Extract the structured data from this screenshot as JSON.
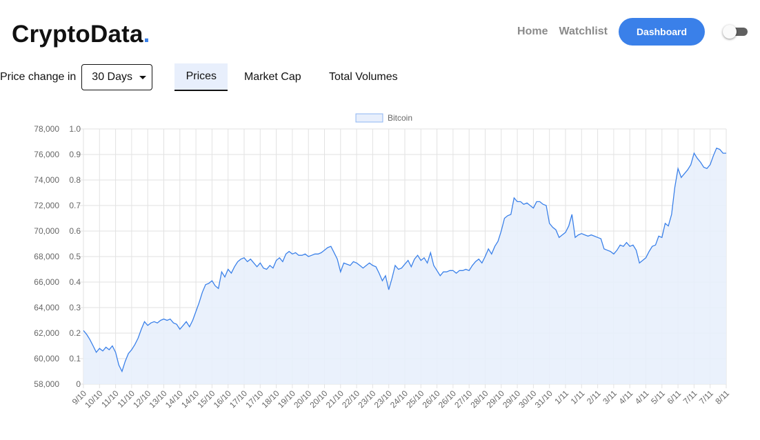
{
  "header": {
    "logo_text": "CryptoData",
    "logo_dot": ".",
    "nav": {
      "home": "Home",
      "watchlist": "Watchlist",
      "dashboard": "Dashboard"
    }
  },
  "controls": {
    "price_change_label": "Price change in",
    "days_selected": "30 Days",
    "tabs": [
      {
        "label": "Prices",
        "active": true
      },
      {
        "label": "Market Cap",
        "active": false
      },
      {
        "label": "Total Volumes",
        "active": false
      }
    ]
  },
  "colors": {
    "accent": "#3a80e9",
    "line": "#3a80e9",
    "fill": "#e8effc",
    "grid": "#e2e2e2"
  },
  "chart_data": {
    "type": "area",
    "legend": [
      "Bitcoin"
    ],
    "legend_position": "top-center",
    "y_left": {
      "ticks": [
        "78,000",
        "76,000",
        "74,000",
        "72,000",
        "70,000",
        "68,000",
        "66,000",
        "64,000",
        "62,000",
        "60,000",
        "58,000"
      ],
      "range": [
        58000,
        78000
      ]
    },
    "y_right": {
      "ticks": [
        "1.0",
        "0.9",
        "0.8",
        "0.7",
        "0.6",
        "0.5",
        "0.4",
        "0.3",
        "0.2",
        "0.1",
        "0"
      ],
      "range": [
        0,
        1
      ]
    },
    "x_labels": [
      "9/10",
      "10/10",
      "11/10",
      "11/10",
      "12/10",
      "13/10",
      "14/10",
      "14/10",
      "15/10",
      "16/10",
      "17/10",
      "17/10",
      "18/10",
      "19/10",
      "20/10",
      "20/10",
      "21/10",
      "22/10",
      "23/10",
      "23/10",
      "24/10",
      "25/10",
      "26/10",
      "26/10",
      "27/10",
      "28/10",
      "29/10",
      "29/10",
      "30/10",
      "31/10",
      "1/11",
      "1/11",
      "2/11",
      "3/11",
      "4/11",
      "4/11",
      "5/11",
      "6/11",
      "7/11",
      "7/11",
      "8/11"
    ],
    "series": [
      {
        "name": "Bitcoin",
        "points": [
          [
            0,
            62200
          ],
          [
            0.2,
            61900
          ],
          [
            0.4,
            61500
          ],
          [
            0.6,
            61000
          ],
          [
            0.8,
            60500
          ],
          [
            1.0,
            60800
          ],
          [
            1.2,
            60600
          ],
          [
            1.4,
            60900
          ],
          [
            1.6,
            60700
          ],
          [
            1.8,
            61000
          ],
          [
            2.0,
            60500
          ],
          [
            2.2,
            59500
          ],
          [
            2.4,
            59000
          ],
          [
            2.6,
            59800
          ],
          [
            2.8,
            60400
          ],
          [
            3.0,
            60700
          ],
          [
            3.2,
            61100
          ],
          [
            3.4,
            61600
          ],
          [
            3.6,
            62300
          ],
          [
            3.8,
            62900
          ],
          [
            4.0,
            62600
          ],
          [
            4.2,
            62800
          ],
          [
            4.4,
            62900
          ],
          [
            4.6,
            62800
          ],
          [
            4.8,
            63000
          ],
          [
            5.0,
            63100
          ],
          [
            5.2,
            63000
          ],
          [
            5.4,
            63100
          ],
          [
            5.6,
            62800
          ],
          [
            5.8,
            62700
          ],
          [
            6.0,
            62300
          ],
          [
            6.2,
            62600
          ],
          [
            6.4,
            62900
          ],
          [
            6.6,
            62500
          ],
          [
            6.8,
            63000
          ],
          [
            7.0,
            63700
          ],
          [
            7.2,
            64400
          ],
          [
            7.4,
            65200
          ],
          [
            7.6,
            65800
          ],
          [
            7.8,
            65900
          ],
          [
            8.0,
            66100
          ],
          [
            8.2,
            65700
          ],
          [
            8.4,
            65500
          ],
          [
            8.6,
            66800
          ],
          [
            8.8,
            66400
          ],
          [
            9.0,
            67000
          ],
          [
            9.2,
            66700
          ],
          [
            9.4,
            67200
          ],
          [
            9.6,
            67600
          ],
          [
            9.8,
            67800
          ],
          [
            10.0,
            67900
          ],
          [
            10.2,
            67600
          ],
          [
            10.4,
            67800
          ],
          [
            10.6,
            67500
          ],
          [
            10.8,
            67200
          ],
          [
            11.0,
            67500
          ],
          [
            11.2,
            67100
          ],
          [
            11.4,
            67000
          ],
          [
            11.6,
            67300
          ],
          [
            11.8,
            67100
          ],
          [
            12.0,
            67700
          ],
          [
            12.2,
            67900
          ],
          [
            12.4,
            67600
          ],
          [
            12.6,
            68200
          ],
          [
            12.8,
            68400
          ],
          [
            13.0,
            68200
          ],
          [
            13.2,
            68300
          ],
          [
            13.4,
            68100
          ],
          [
            13.6,
            68100
          ],
          [
            13.8,
            68200
          ],
          [
            14.0,
            68000
          ],
          [
            14.2,
            68100
          ],
          [
            14.4,
            68200
          ],
          [
            14.6,
            68200
          ],
          [
            14.8,
            68300
          ],
          [
            15.0,
            68500
          ],
          [
            15.2,
            68700
          ],
          [
            15.4,
            68800
          ],
          [
            15.6,
            68300
          ],
          [
            15.8,
            67800
          ],
          [
            16.0,
            66800
          ],
          [
            16.2,
            67500
          ],
          [
            16.4,
            67400
          ],
          [
            16.6,
            67300
          ],
          [
            16.8,
            67600
          ],
          [
            17.0,
            67500
          ],
          [
            17.2,
            67300
          ],
          [
            17.4,
            67100
          ],
          [
            17.6,
            67300
          ],
          [
            17.8,
            67500
          ],
          [
            18.0,
            67300
          ],
          [
            18.2,
            67200
          ],
          [
            18.4,
            66700
          ],
          [
            18.6,
            66100
          ],
          [
            18.8,
            66500
          ],
          [
            19.0,
            65400
          ],
          [
            19.2,
            66300
          ],
          [
            19.4,
            67300
          ],
          [
            19.6,
            67000
          ],
          [
            19.8,
            67100
          ],
          [
            20.0,
            67400
          ],
          [
            20.2,
            67700
          ],
          [
            20.4,
            67200
          ],
          [
            20.6,
            67800
          ],
          [
            20.8,
            68100
          ],
          [
            21.0,
            67700
          ],
          [
            21.2,
            67900
          ],
          [
            21.4,
            67500
          ],
          [
            21.6,
            68300
          ],
          [
            21.8,
            67300
          ],
          [
            22.0,
            66900
          ],
          [
            22.2,
            66500
          ],
          [
            22.4,
            66800
          ],
          [
            22.6,
            66800
          ],
          [
            22.8,
            66900
          ],
          [
            23.0,
            66900
          ],
          [
            23.2,
            66700
          ],
          [
            23.4,
            66900
          ],
          [
            23.6,
            66900
          ],
          [
            23.8,
            67000
          ],
          [
            24.0,
            66900
          ],
          [
            24.2,
            67300
          ],
          [
            24.4,
            67600
          ],
          [
            24.6,
            67800
          ],
          [
            24.8,
            67500
          ],
          [
            25.0,
            68000
          ],
          [
            25.2,
            68600
          ],
          [
            25.4,
            68200
          ],
          [
            25.6,
            68800
          ],
          [
            25.8,
            69200
          ],
          [
            26.0,
            70000
          ],
          [
            26.2,
            71000
          ],
          [
            26.4,
            71200
          ],
          [
            26.6,
            71300
          ],
          [
            26.8,
            72600
          ],
          [
            27.0,
            72300
          ],
          [
            27.2,
            72300
          ],
          [
            27.4,
            72100
          ],
          [
            27.6,
            72200
          ],
          [
            27.8,
            72000
          ],
          [
            28.0,
            71800
          ],
          [
            28.2,
            72300
          ],
          [
            28.4,
            72300
          ],
          [
            28.6,
            72100
          ],
          [
            28.8,
            72000
          ],
          [
            29.0,
            70600
          ],
          [
            29.2,
            70300
          ],
          [
            29.4,
            70100
          ],
          [
            29.6,
            69500
          ],
          [
            29.8,
            69700
          ],
          [
            30.0,
            69900
          ],
          [
            30.2,
            70400
          ],
          [
            30.4,
            71300
          ],
          [
            30.6,
            69500
          ],
          [
            30.8,
            69700
          ],
          [
            31.0,
            69800
          ],
          [
            31.2,
            69700
          ],
          [
            31.4,
            69600
          ],
          [
            31.6,
            69700
          ],
          [
            31.8,
            69600
          ],
          [
            32.0,
            69500
          ],
          [
            32.2,
            69400
          ],
          [
            32.4,
            68600
          ],
          [
            32.6,
            68500
          ],
          [
            32.8,
            68400
          ],
          [
            33.0,
            68200
          ],
          [
            33.2,
            68500
          ],
          [
            33.4,
            68900
          ],
          [
            33.6,
            68800
          ],
          [
            33.8,
            69100
          ],
          [
            34.0,
            68800
          ],
          [
            34.2,
            68900
          ],
          [
            34.4,
            68500
          ],
          [
            34.6,
            67500
          ],
          [
            34.8,
            67700
          ],
          [
            35.0,
            67900
          ],
          [
            35.2,
            68400
          ],
          [
            35.4,
            68800
          ],
          [
            35.6,
            68900
          ],
          [
            35.8,
            69600
          ],
          [
            36.0,
            69500
          ],
          [
            36.2,
            70600
          ],
          [
            36.4,
            70400
          ],
          [
            36.6,
            71300
          ],
          [
            36.8,
            73400
          ],
          [
            37.0,
            74900
          ],
          [
            37.2,
            74200
          ],
          [
            37.4,
            74500
          ],
          [
            37.6,
            74800
          ],
          [
            37.8,
            75200
          ],
          [
            38.0,
            76100
          ],
          [
            38.2,
            75700
          ],
          [
            38.4,
            75400
          ],
          [
            38.6,
            75000
          ],
          [
            38.8,
            74900
          ],
          [
            39.0,
            75200
          ],
          [
            39.2,
            75900
          ],
          [
            39.4,
            76500
          ],
          [
            39.6,
            76400
          ],
          [
            39.8,
            76100
          ],
          [
            40.0,
            76100
          ]
        ]
      }
    ]
  }
}
